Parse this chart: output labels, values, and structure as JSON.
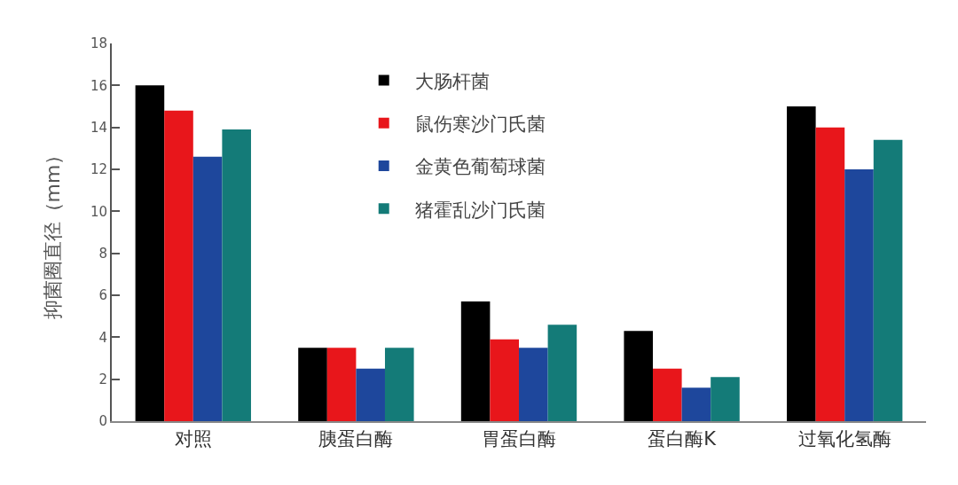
{
  "chart_data": {
    "type": "bar",
    "ylabel": "抑菌圈直径（mm）",
    "categories": [
      "对照",
      "胰蛋白酶",
      "胃蛋白酶",
      "蛋白酶K",
      "过氧化氢酶"
    ],
    "series": [
      {
        "name": "大肠杆菌",
        "color": "#000000",
        "values": [
          16,
          3.5,
          5.7,
          4.3,
          15
        ]
      },
      {
        "name": "鼠伤寒沙门氏菌",
        "color": "#e8161b",
        "values": [
          14.8,
          3.5,
          3.9,
          2.5,
          14
        ]
      },
      {
        "name": "金黄色葡萄球菌",
        "color": "#1e479c",
        "values": [
          12.6,
          2.5,
          3.5,
          1.6,
          12
        ]
      },
      {
        "name": "猪霍乱沙门氏菌",
        "color": "#147b78",
        "values": [
          13.9,
          3.5,
          4.6,
          2.1,
          13.4
        ]
      }
    ],
    "ylim": [
      0,
      18
    ],
    "yticks": [
      0,
      2,
      4,
      6,
      8,
      10,
      12,
      14,
      16,
      18
    ],
    "legend": "top"
  }
}
